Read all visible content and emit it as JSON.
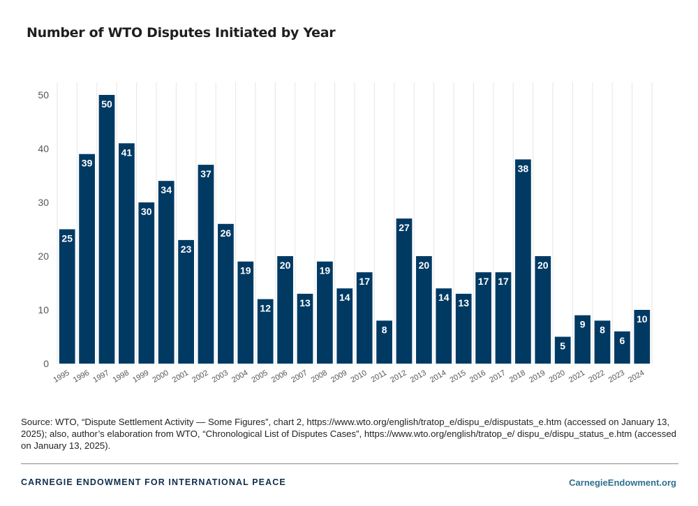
{
  "title": "Number of WTO Disputes Initiated by Year",
  "source": "Source: WTO, “Dispute Settlement Activity — Some Figures”, chart 2, https://www.wto.org/english/tratop_e/dispu_e/dispustats_e.htm (accessed on January 13, 2025); also, author’s elaboration from WTO, “Chronological List of Disputes Cases”, https://www.wto.org/english/tratop_e/ dispu_e/dispu_status_e.htm (accessed on January 13, 2025).",
  "footer": {
    "organization": "CARNEGIE ENDOWMENT FOR INTERNATIONAL PEACE",
    "website": "CarnegieEndowment.org"
  },
  "colors": {
    "bar": "#003a63",
    "label": "#ffffff",
    "grid": "#e6e6e6",
    "tick": "#555555"
  },
  "chart_data": {
    "type": "bar",
    "title": "Number of WTO Disputes Initiated by Year",
    "xlabel": "",
    "ylabel": "",
    "categories": [
      "1995",
      "1996",
      "1997",
      "1998",
      "1999",
      "2000",
      "2001",
      "2002",
      "2003",
      "2004",
      "2005",
      "2006",
      "2007",
      "2008",
      "2009",
      "2010",
      "2011",
      "2012",
      "2013",
      "2014",
      "2015",
      "2016",
      "2017",
      "2018",
      "2019",
      "2020",
      "2021",
      "2022",
      "2023",
      "2024"
    ],
    "values": [
      25,
      39,
      50,
      41,
      30,
      34,
      23,
      37,
      26,
      19,
      12,
      20,
      13,
      19,
      14,
      17,
      8,
      27,
      20,
      14,
      13,
      17,
      17,
      38,
      20,
      5,
      9,
      8,
      6,
      10
    ],
    "ylim": [
      0,
      50
    ],
    "yticks": [
      0,
      10,
      20,
      30,
      40,
      50
    ],
    "grid": "vertical",
    "data_labels": true,
    "legend": "none"
  }
}
